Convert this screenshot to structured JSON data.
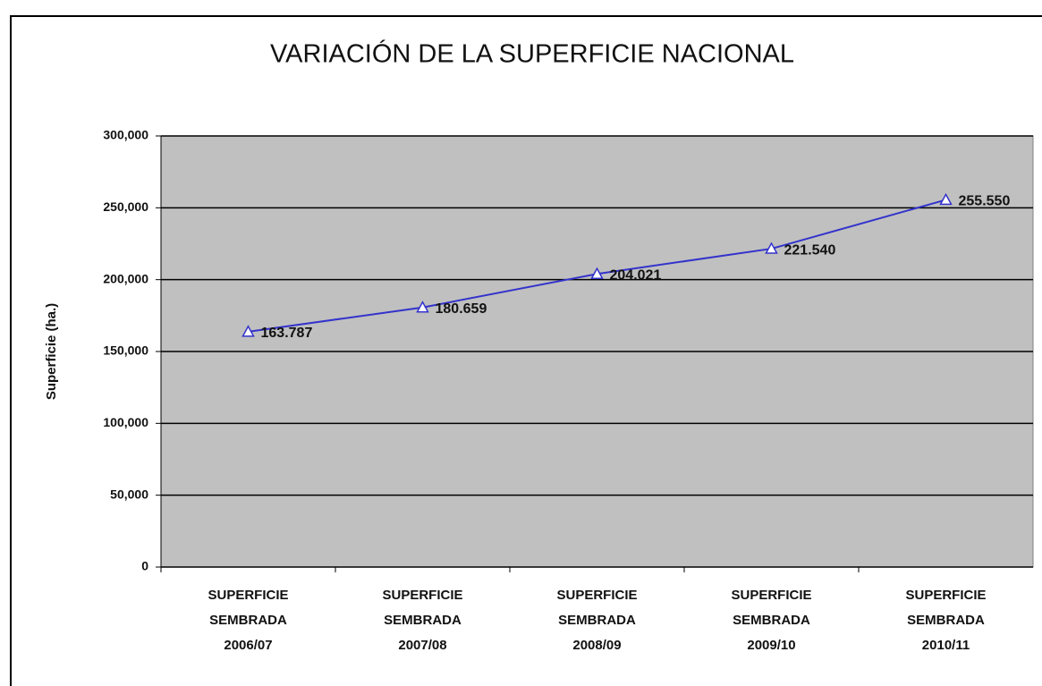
{
  "chart_data": {
    "type": "line",
    "title": "VARIACIÓN DE LA SUPERFICIE NACIONAL",
    "y_label": "Superficie (ha.)",
    "categories": [
      "SUPERFICIE SEMBRADA 2006/07",
      "SUPERFICIE SEMBRADA 2007/08",
      "SUPERFICIE SEMBRADA 2008/09",
      "SUPERFICIE SEMBRADA 2009/10",
      "SUPERFICIE SEMBRADA 2010/11"
    ],
    "series": [
      {
        "name": "Superficie",
        "color": "#3333cc",
        "values": [
          163787,
          180659,
          204021,
          221540,
          255550
        ],
        "value_labels": [
          "163.787",
          "180.659",
          "204.021",
          "221.540",
          "255.550"
        ]
      }
    ],
    "ylim": [
      0,
      300000
    ],
    "yticks": [
      0,
      {
        "value": 50000,
        "label": "50,000"
      },
      {
        "value": 100000,
        "label": "100,000"
      },
      {
        "value": 150000,
        "label": "150,000"
      },
      {
        "value": 200000,
        "label": "200,000"
      },
      {
        "value": 250000,
        "label": "250,000"
      },
      {
        "value": 300000,
        "label": "300,000"
      }
    ],
    "grid": true,
    "plot_background": "#c0c0c0"
  }
}
